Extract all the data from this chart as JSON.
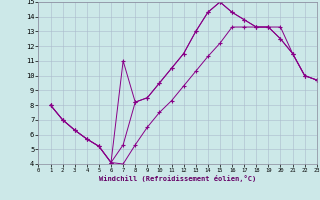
{
  "xlabel": "Windchill (Refroidissement éolien,°C)",
  "bg_color": "#cce8e8",
  "grid_color": "#aabbcc",
  "line_color": "#880088",
  "xmin": 0,
  "xmax": 23,
  "ymin": 4,
  "ymax": 15,
  "line1_x": [
    1,
    2,
    3,
    4,
    5,
    6,
    7,
    8,
    9,
    10,
    11,
    12,
    13,
    14,
    15,
    16,
    17,
    18,
    19,
    20,
    21,
    22,
    23
  ],
  "line1_y": [
    8.0,
    7.0,
    6.3,
    5.7,
    5.2,
    4.1,
    4.0,
    5.3,
    6.5,
    7.5,
    8.3,
    9.3,
    10.3,
    11.3,
    12.2,
    13.3,
    13.3,
    13.3,
    13.3,
    13.3,
    11.5,
    10.0,
    9.7
  ],
  "line2_x": [
    1,
    2,
    3,
    4,
    5,
    6,
    7,
    8,
    9,
    10,
    11,
    12,
    13,
    14,
    15,
    16,
    17,
    18,
    19,
    20,
    21,
    22,
    23
  ],
  "line2_y": [
    8.0,
    7.0,
    6.3,
    5.7,
    5.2,
    4.1,
    11.0,
    8.2,
    8.5,
    9.5,
    10.5,
    11.5,
    13.0,
    14.3,
    15.0,
    14.3,
    13.8,
    13.3,
    13.3,
    12.5,
    11.5,
    10.0,
    9.7
  ],
  "line3_x": [
    1,
    2,
    3,
    4,
    5,
    6,
    7,
    8,
    9,
    10,
    11,
    12,
    13,
    14,
    15,
    16,
    17,
    18,
    19,
    20,
    21,
    22,
    23
  ],
  "line3_y": [
    8.0,
    7.0,
    6.3,
    5.7,
    5.2,
    4.1,
    5.3,
    8.2,
    8.5,
    9.5,
    10.5,
    11.5,
    13.0,
    14.3,
    15.0,
    14.3,
    13.8,
    13.3,
    13.3,
    12.5,
    11.5,
    10.0,
    9.7
  ]
}
